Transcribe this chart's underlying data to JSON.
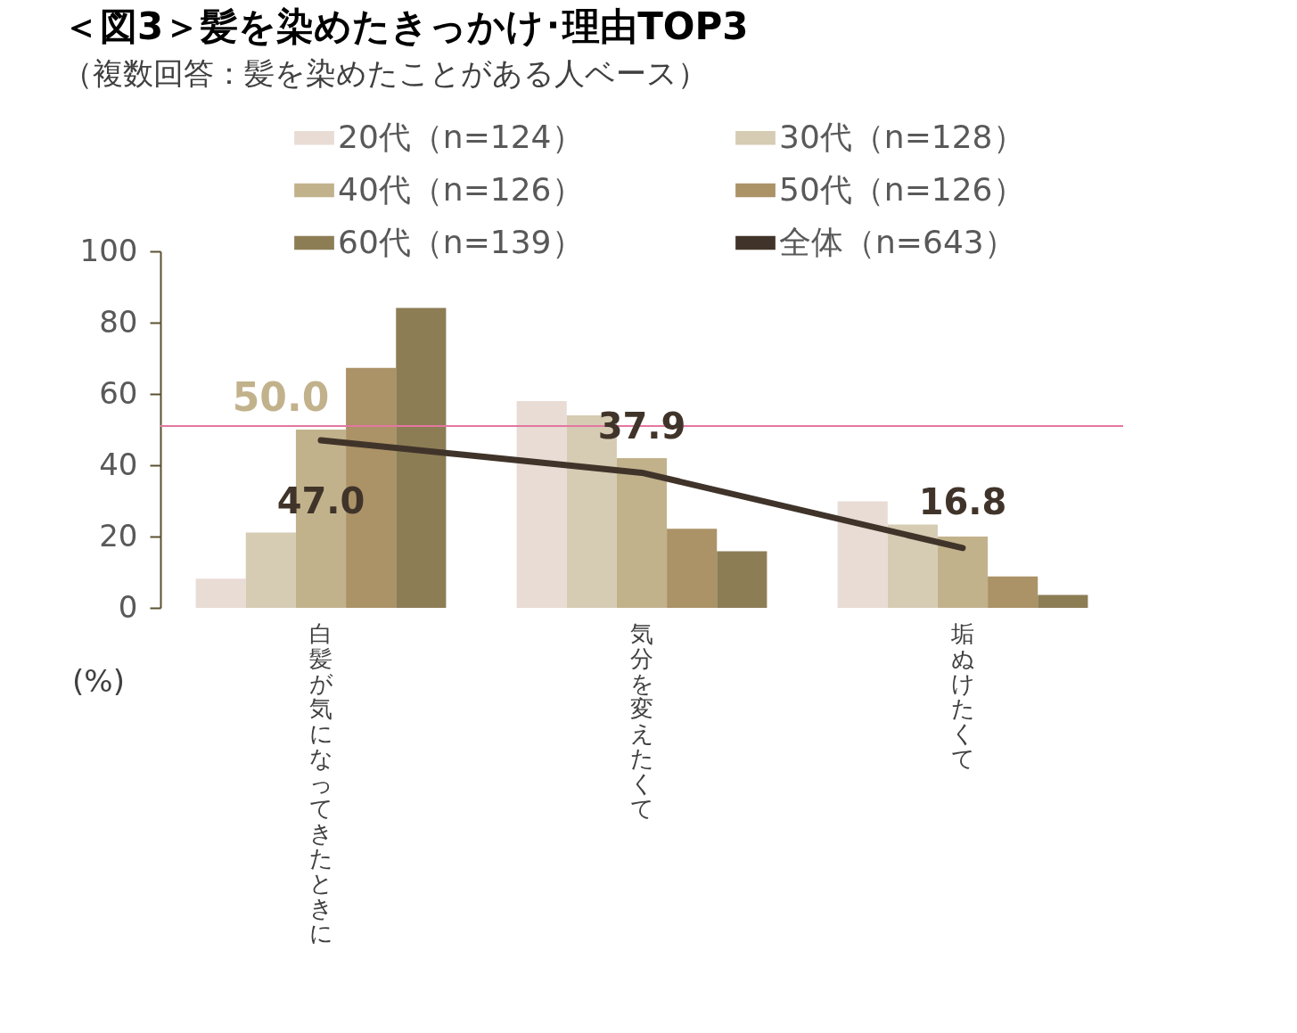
{
  "chart_data": {
    "type": "bar",
    "title": "＜図3＞髪を染めたきっかけ･理由TOP3",
    "subtitle": "（複数回答：髪を染めたことがある人ベース）",
    "ylabel": "(%)",
    "categories": [
      "白髪が気になってきたときに",
      "気分を変えたくて",
      "垢ぬけたくて"
    ],
    "series": [
      {
        "name": "20代（n=124）",
        "color": "#e8dcd4",
        "values": [
          8.2,
          58.0,
          29.9
        ]
      },
      {
        "name": "30代（n=128）",
        "color": "#d6cbb3",
        "values": [
          21.1,
          54.0,
          23.4
        ]
      },
      {
        "name": "40代（n=126）",
        "color": "#c2b28c",
        "values": [
          50.0,
          42.0,
          20.0
        ],
        "value_labels": [
          "50.0",
          null,
          null
        ]
      },
      {
        "name": "50代（n=126）",
        "color": "#ab9267",
        "values": [
          67.3,
          22.2,
          8.8
        ]
      },
      {
        "name": "60代（n=139）",
        "color": "#8c7d55",
        "values": [
          84.1,
          15.9,
          3.6
        ]
      },
      {
        "name": "全体（n=643）",
        "color": "#40342a",
        "type": "line",
        "values": [
          47.0,
          37.9,
          16.8
        ],
        "value_labels": [
          "47.0",
          "37.9",
          "16.8"
        ]
      }
    ],
    "ylim": [
      0,
      100
    ],
    "yticks": [
      0,
      20,
      40,
      60,
      80,
      100
    ],
    "grid": false,
    "legend": "top",
    "marker": "none",
    "line_style": "solid",
    "ref_lines": [
      {
        "axis": "y",
        "value": 51,
        "color": "#e377a0"
      }
    ]
  }
}
